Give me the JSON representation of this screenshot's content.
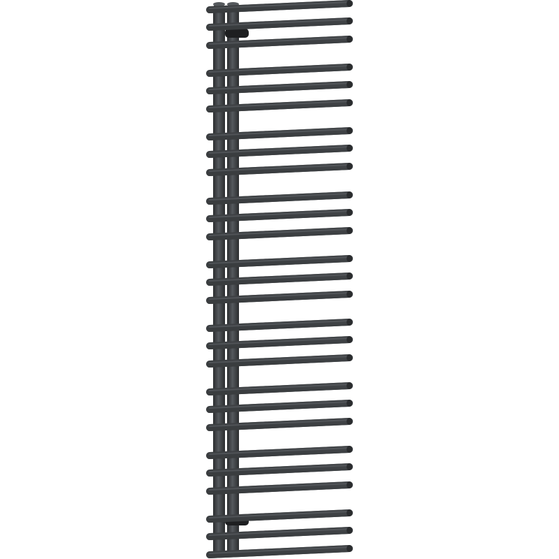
{
  "product_image": {
    "colors": {
      "background": "#ffffff",
      "metal": "#3d4043",
      "metal_highlight": "#55595d",
      "metal_shadow": "#2a2c2e",
      "valve": "#1e1f21"
    }
  }
}
